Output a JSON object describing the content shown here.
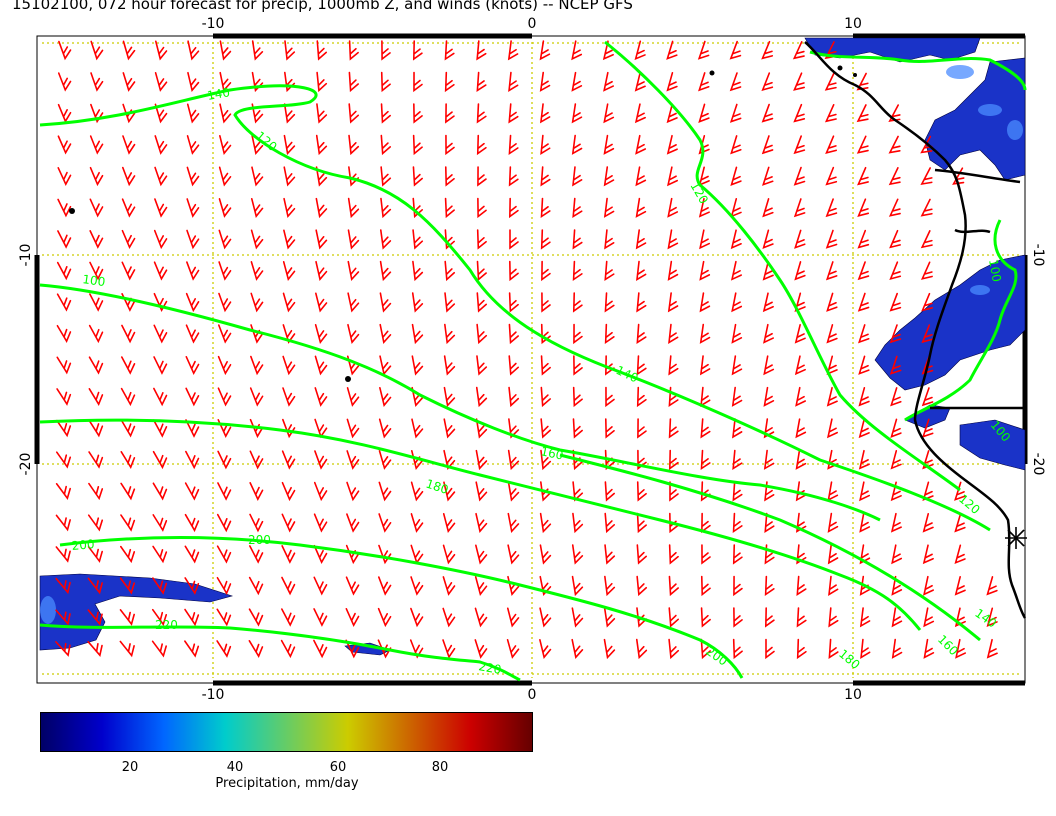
{
  "header": {
    "title": "15102100, 072 hour forecast for precip, 1000mb Z, and winds (knots) -- NCEP GFS"
  },
  "map": {
    "lon_ticks": [
      "-10",
      "0",
      "10"
    ],
    "lat_ticks": [
      "-10",
      "-20"
    ],
    "contour_labels": [
      "140",
      "120",
      "120",
      "100",
      "140",
      "160",
      "180",
      "200",
      "200",
      "220",
      "220",
      "200",
      "180",
      "160",
      "140",
      "120",
      "100",
      "100"
    ],
    "colors": {
      "contour": "#00ff00",
      "barb": "#ff0000",
      "coast": "#000000",
      "grid": "#cccc00",
      "precip": "#1a33c8"
    }
  },
  "colorbar": {
    "ticks": [
      "20",
      "40",
      "60",
      "80"
    ],
    "label": "Precipitation, mm/day",
    "stops": [
      "#000066",
      "#0000cc",
      "#0066ff",
      "#00cccc",
      "#66cc66",
      "#cccc00",
      "#cc6600",
      "#cc0000",
      "#660000"
    ]
  }
}
